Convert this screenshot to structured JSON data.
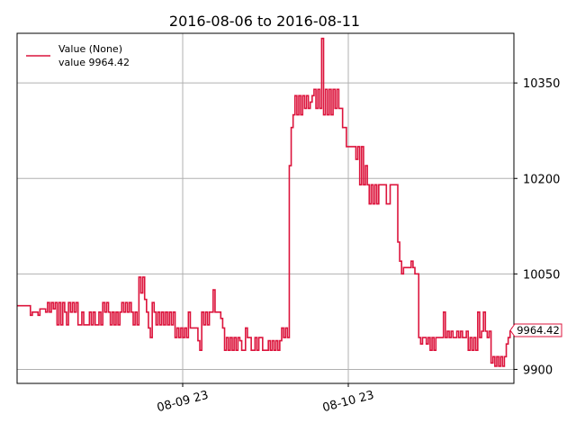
{
  "chart_data": {
    "type": "line",
    "title": "2016-08-06 to 2016-08-11",
    "xlabel": "",
    "ylabel": "",
    "x_tick_labels": [
      "08-09 23",
      "08-10 23"
    ],
    "y_ticks": [
      9900,
      10050,
      10200,
      10350
    ],
    "ylim": [
      9878,
      10428
    ],
    "grid": true,
    "y_axis_side": "right",
    "legend": {
      "placement": "top-left",
      "entries": [
        "Value (None)",
        "value 9964.42"
      ]
    },
    "last_value_label": "9964.42",
    "series": [
      {
        "name": "Value (None)",
        "color": "#dc143c",
        "x_range": [
          "2016-08-08 23:00",
          "2016-08-11 10:00"
        ],
        "values": [
          10000,
          10000,
          10000,
          10000,
          10000,
          10000,
          10000,
          9985,
          9990,
          9990,
          9990,
          9985,
          9995,
          9995,
          9995,
          9990,
          10005,
          9990,
          10005,
          9995,
          10005,
          9970,
          10005,
          9970,
          10005,
          9990,
          9970,
          10005,
          9990,
          10005,
          9990,
          10005,
          9970,
          9970,
          9990,
          9970,
          9970,
          9970,
          9990,
          9970,
          9990,
          9970,
          9970,
          9990,
          9970,
          10005,
          9990,
          10005,
          9990,
          9970,
          9990,
          9970,
          9990,
          9970,
          9990,
          10005,
          9990,
          10005,
          9990,
          10005,
          9990,
          9970,
          9990,
          9970,
          10045,
          10020,
          10045,
          10010,
          9990,
          9965,
          9950,
          10005,
          9990,
          9970,
          9990,
          9970,
          9990,
          9970,
          9990,
          9970,
          9990,
          9970,
          9990,
          9950,
          9965,
          9950,
          9965,
          9950,
          9965,
          9950,
          9990,
          9965,
          9965,
          9965,
          9965,
          9945,
          9930,
          9990,
          9970,
          9990,
          9970,
          9990,
          9990,
          10025,
          9990,
          9990,
          9990,
          9980,
          9965,
          9930,
          9950,
          9930,
          9950,
          9930,
          9950,
          9930,
          9950,
          9945,
          9930,
          9930,
          9965,
          9950,
          9950,
          9930,
          9930,
          9950,
          9930,
          9950,
          9950,
          9930,
          9930,
          9930,
          9945,
          9930,
          9945,
          9930,
          9945,
          9930,
          9945,
          9965,
          9950,
          9965,
          9950,
          10220,
          10280,
          10300,
          10330,
          10300,
          10330,
          10300,
          10330,
          10310,
          10330,
          10310,
          10320,
          10330,
          10340,
          10310,
          10340,
          10310,
          10420,
          10300,
          10340,
          10300,
          10340,
          10300,
          10340,
          10310,
          10340,
          10310,
          10310,
          10280,
          10280,
          10250,
          10250,
          10250,
          10250,
          10250,
          10230,
          10250,
          10190,
          10250,
          10190,
          10220,
          10190,
          10160,
          10190,
          10160,
          10190,
          10160,
          10190,
          10190,
          10190,
          10190,
          10160,
          10160,
          10190,
          10190,
          10190,
          10190,
          10100,
          10070,
          10050,
          10060,
          10060,
          10060,
          10060,
          10070,
          10060,
          10050,
          10050,
          9950,
          9940,
          9950,
          9950,
          9940,
          9950,
          9930,
          9950,
          9930,
          9950,
          9950,
          9950,
          9950,
          9990,
          9950,
          9960,
          9950,
          9960,
          9950,
          9950,
          9960,
          9950,
          9960,
          9950,
          9950,
          9960,
          9930,
          9950,
          9930,
          9950,
          9930,
          9990,
          9950,
          9960,
          9990,
          9960,
          9950,
          9960,
          9910,
          9920,
          9905,
          9920,
          9905,
          9920,
          9905,
          9920,
          9940,
          9950,
          9960,
          9964.42
        ]
      }
    ]
  }
}
